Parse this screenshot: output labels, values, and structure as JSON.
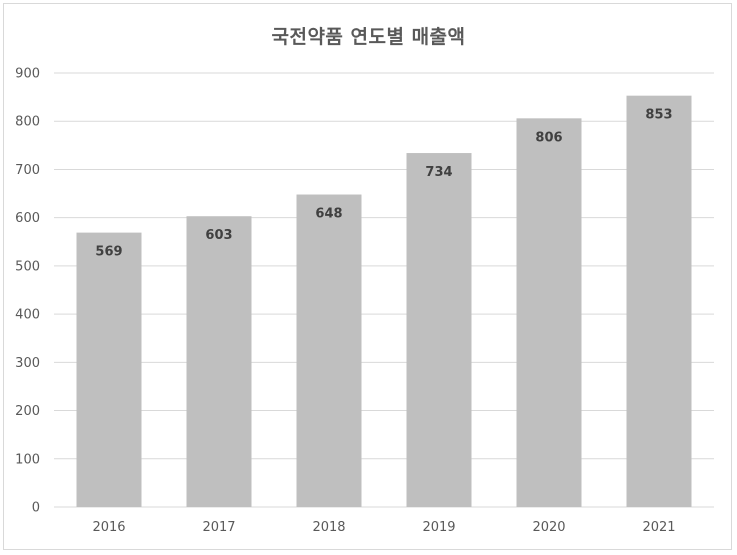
{
  "chart_data": {
    "type": "bar",
    "title": "국전약품 연도별 매출액",
    "xlabel": "",
    "ylabel": "",
    "categories": [
      "2016",
      "2017",
      "2018",
      "2019",
      "2020",
      "2021"
    ],
    "values": [
      569,
      603,
      648,
      734,
      806,
      853
    ],
    "ylim": [
      0,
      900
    ],
    "yticks": [
      0,
      100,
      200,
      300,
      400,
      500,
      600,
      700,
      800,
      900
    ],
    "grid": true,
    "legend": "none",
    "colors": {
      "bar": "#bfbfbf",
      "grid": "#d9d9d9",
      "text": "#595959",
      "label": "#404040"
    }
  }
}
